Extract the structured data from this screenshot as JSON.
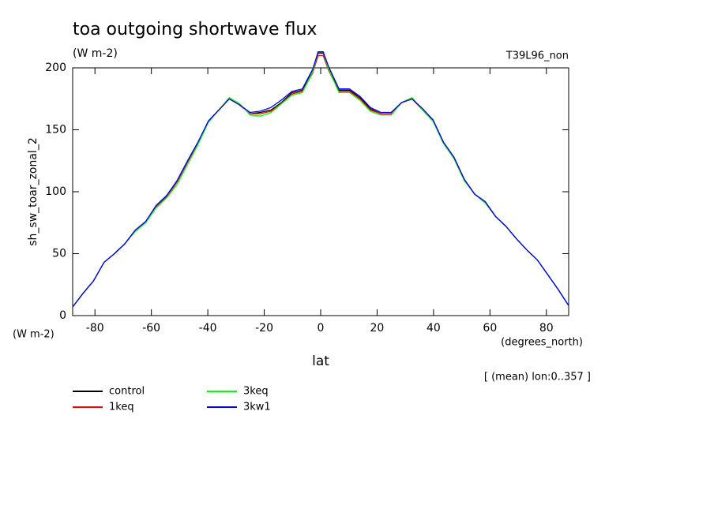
{
  "chart_data": {
    "type": "line",
    "title": "toa outgoing shortwave flux",
    "subtitle": "(W m-2)",
    "annotation_right": "T39L96_non",
    "y_label": "sh_sw_toar_zonal_2",
    "y_units": "(W m-2)",
    "x_label": "lat",
    "x_units": "(degrees_north)",
    "note": "[ (mean) lon:0..357 ]",
    "x": [
      -87.9,
      -84.2,
      -80.5,
      -76.8,
      -73.1,
      -69.4,
      -65.7,
      -62,
      -58.3,
      -54.6,
      -50.9,
      -47.2,
      -43.5,
      -39.8,
      -36.1,
      -32.4,
      -28.7,
      -25,
      -21.3,
      -17.6,
      -13.9,
      -10.2,
      -6.5,
      -2.8,
      -0.9,
      0.9,
      2.8,
      6.5,
      10.2,
      13.9,
      17.6,
      21.3,
      25,
      28.7,
      32.4,
      36.1,
      39.8,
      43.5,
      47.2,
      50.9,
      54.6,
      58.3,
      62,
      65.7,
      69.4,
      73.1,
      76.8,
      80.5,
      84.2,
      87.9
    ],
    "series": [
      {
        "name": "control",
        "color": "#000000",
        "values": [
          7,
          18,
          28,
          43,
          50,
          58,
          69,
          76,
          88,
          96,
          108,
          124,
          139,
          157,
          166,
          175,
          170,
          163,
          164,
          166,
          172,
          180,
          182,
          198,
          212,
          212,
          200,
          182,
          182,
          176,
          167,
          163,
          163,
          172,
          175,
          167,
          158,
          140,
          128,
          110,
          98,
          92,
          80,
          72,
          62,
          53,
          45,
          33,
          21,
          8
        ]
      },
      {
        "name": "1keq",
        "color": "#ff0000",
        "values": [
          7,
          18,
          28,
          43,
          50,
          58,
          69,
          76,
          88,
          96,
          108,
          124,
          139,
          157,
          166,
          175,
          170,
          163,
          163,
          165,
          171,
          179,
          181,
          196,
          210,
          210,
          198,
          181,
          181,
          175,
          166,
          163,
          163,
          172,
          175,
          166,
          157,
          140,
          128,
          110,
          98,
          91,
          80,
          72,
          62,
          53,
          45,
          33,
          21,
          8
        ]
      },
      {
        "name": "3keq",
        "color": "#00ff00",
        "values": [
          7,
          18,
          28,
          43,
          50,
          58,
          68,
          75,
          87,
          95,
          106,
          122,
          138,
          156,
          166,
          176,
          171,
          162,
          161,
          164,
          171,
          178,
          180,
          197,
          213,
          213,
          199,
          180,
          180,
          174,
          165,
          162,
          162,
          172,
          176,
          166,
          157,
          139,
          127,
          109,
          98,
          91,
          80,
          72,
          62,
          53,
          45,
          33,
          21,
          8
        ]
      },
      {
        "name": "3kw1",
        "color": "#0000ff",
        "values": [
          7,
          18,
          28,
          43,
          50,
          58,
          69,
          76,
          89,
          97,
          109,
          125,
          140,
          157,
          166,
          175,
          170,
          164,
          165,
          168,
          174,
          181,
          183,
          199,
          213,
          213,
          201,
          183,
          183,
          177,
          168,
          164,
          164,
          172,
          175,
          167,
          158,
          140,
          128,
          110,
          98,
          92,
          80,
          72,
          62,
          53,
          45,
          33,
          21,
          8
        ]
      }
    ],
    "xlim": [
      -87.9,
      87.9
    ],
    "xticks": [
      -80,
      -60,
      -40,
      -20,
      0,
      20,
      40,
      60,
      80
    ],
    "ylim": [
      0,
      200
    ],
    "yticks": [
      0,
      50,
      100,
      150,
      200
    ]
  }
}
